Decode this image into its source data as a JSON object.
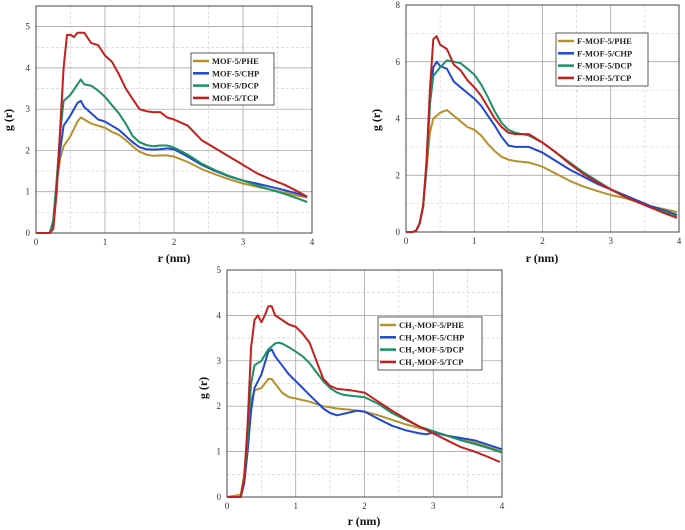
{
  "colors": {
    "PHE": "#b8902a",
    "CHP": "#2048d0",
    "DCP": "#1a9063",
    "TCP": "#c81d1d"
  },
  "chart_data": [
    {
      "type": "line",
      "title": "",
      "xlabel": "r (nm)",
      "ylabel": "g (r)",
      "xlim": [
        0,
        4
      ],
      "ylim": [
        0,
        5.5
      ],
      "xticks": [
        0,
        1,
        2,
        3,
        4
      ],
      "yticks": [
        0,
        1,
        2,
        3,
        4,
        5
      ],
      "grid": true,
      "legend_position": "upper-right",
      "series": [
        {
          "name": "MOF-5/PHE",
          "key": "PHE",
          "x": [
            0,
            0.2,
            0.25,
            0.3,
            0.35,
            0.4,
            0.5,
            0.6,
            0.65,
            0.7,
            0.8,
            0.9,
            1.0,
            1.1,
            1.2,
            1.3,
            1.4,
            1.5,
            1.6,
            1.7,
            1.8,
            1.9,
            2.0,
            2.2,
            2.4,
            2.6,
            2.8,
            3.0,
            3.2,
            3.4,
            3.6,
            3.8,
            3.93
          ],
          "y": [
            0,
            0,
            0.3,
            1.2,
            1.8,
            2.1,
            2.35,
            2.7,
            2.8,
            2.75,
            2.65,
            2.6,
            2.55,
            2.45,
            2.38,
            2.25,
            2.1,
            1.97,
            1.9,
            1.87,
            1.88,
            1.88,
            1.85,
            1.72,
            1.55,
            1.42,
            1.3,
            1.2,
            1.12,
            1.05,
            0.98,
            0.9,
            0.86
          ]
        },
        {
          "name": "MOF-5/CHP",
          "key": "CHP",
          "x": [
            0,
            0.2,
            0.25,
            0.3,
            0.35,
            0.4,
            0.5,
            0.6,
            0.65,
            0.7,
            0.8,
            0.9,
            1.0,
            1.1,
            1.2,
            1.3,
            1.4,
            1.5,
            1.6,
            1.7,
            1.8,
            1.9,
            2.0,
            2.2,
            2.4,
            2.6,
            2.8,
            3.0,
            3.2,
            3.4,
            3.6,
            3.8,
            3.93
          ],
          "y": [
            0,
            0,
            0.3,
            1.2,
            2.0,
            2.6,
            2.85,
            3.15,
            3.2,
            3.05,
            2.9,
            2.75,
            2.7,
            2.6,
            2.5,
            2.35,
            2.2,
            2.08,
            2.03,
            2.02,
            2.03,
            2.05,
            2.03,
            1.85,
            1.65,
            1.5,
            1.37,
            1.27,
            1.2,
            1.12,
            1.04,
            0.95,
            0.88
          ]
        },
        {
          "name": "MOF-5/DCP",
          "key": "DCP",
          "x": [
            0,
            0.2,
            0.25,
            0.3,
            0.35,
            0.4,
            0.5,
            0.6,
            0.65,
            0.7,
            0.8,
            0.9,
            1.0,
            1.1,
            1.2,
            1.3,
            1.4,
            1.5,
            1.6,
            1.7,
            1.8,
            1.9,
            2.0,
            2.2,
            2.4,
            2.6,
            2.8,
            3.0,
            3.2,
            3.4,
            3.6,
            3.8,
            3.93
          ],
          "y": [
            0,
            0,
            0.3,
            1.3,
            2.4,
            3.2,
            3.35,
            3.6,
            3.72,
            3.6,
            3.57,
            3.45,
            3.3,
            3.1,
            2.9,
            2.65,
            2.35,
            2.2,
            2.13,
            2.1,
            2.12,
            2.12,
            2.07,
            1.9,
            1.68,
            1.52,
            1.38,
            1.27,
            1.15,
            1.05,
            0.95,
            0.83,
            0.75
          ]
        },
        {
          "name": "MOF-5/TCP",
          "key": "TCP",
          "x": [
            0,
            0.2,
            0.25,
            0.3,
            0.35,
            0.4,
            0.45,
            0.5,
            0.55,
            0.6,
            0.7,
            0.8,
            0.9,
            1.0,
            1.1,
            1.2,
            1.3,
            1.4,
            1.5,
            1.6,
            1.7,
            1.8,
            1.9,
            2.0,
            2.2,
            2.4,
            2.6,
            2.8,
            3.0,
            3.2,
            3.4,
            3.6,
            3.8,
            3.93
          ],
          "y": [
            0,
            0,
            0.1,
            1.0,
            2.5,
            4.0,
            4.8,
            4.8,
            4.75,
            4.85,
            4.85,
            4.6,
            4.55,
            4.3,
            4.15,
            3.85,
            3.5,
            3.25,
            3.0,
            2.95,
            2.93,
            2.93,
            2.8,
            2.75,
            2.6,
            2.25,
            2.05,
            1.85,
            1.65,
            1.45,
            1.3,
            1.17,
            1.0,
            0.88
          ]
        }
      ]
    },
    {
      "type": "line",
      "title": "",
      "xlabel": "r (nm)",
      "ylabel": "g (r)",
      "xlim": [
        0,
        4
      ],
      "ylim": [
        0,
        8
      ],
      "xticks": [
        0,
        1,
        2,
        3,
        4
      ],
      "yticks": [
        0,
        2,
        4,
        6,
        8
      ],
      "grid": true,
      "legend_position": "upper-right",
      "series": [
        {
          "name": "F-MOF-5/PHE",
          "key": "PHE",
          "x": [
            0,
            0.1,
            0.15,
            0.2,
            0.25,
            0.3,
            0.35,
            0.4,
            0.5,
            0.6,
            0.7,
            0.8,
            0.9,
            1.0,
            1.1,
            1.2,
            1.3,
            1.4,
            1.5,
            1.6,
            1.8,
            2.0,
            2.2,
            2.4,
            2.6,
            2.8,
            3.0,
            3.2,
            3.4,
            3.6,
            3.8,
            3.97
          ],
          "y": [
            0,
            0,
            0.05,
            0.3,
            0.9,
            2.2,
            3.5,
            4.0,
            4.2,
            4.3,
            4.1,
            3.9,
            3.7,
            3.6,
            3.4,
            3.1,
            2.85,
            2.65,
            2.55,
            2.5,
            2.45,
            2.3,
            2.05,
            1.8,
            1.6,
            1.45,
            1.3,
            1.2,
            1.05,
            0.9,
            0.8,
            0.7
          ]
        },
        {
          "name": "F-MOF-5/CHP",
          "key": "CHP",
          "x": [
            0,
            0.1,
            0.15,
            0.2,
            0.25,
            0.3,
            0.35,
            0.4,
            0.45,
            0.5,
            0.6,
            0.7,
            0.8,
            0.9,
            1.0,
            1.1,
            1.2,
            1.3,
            1.4,
            1.5,
            1.6,
            1.8,
            2.0,
            2.2,
            2.4,
            2.6,
            2.8,
            3.0,
            3.2,
            3.4,
            3.6,
            3.8,
            3.97
          ],
          "y": [
            0,
            0,
            0.05,
            0.3,
            0.9,
            2.3,
            4.5,
            5.8,
            6.0,
            5.85,
            5.75,
            5.3,
            5.1,
            4.9,
            4.7,
            4.45,
            4.1,
            3.75,
            3.35,
            3.05,
            3.0,
            3.0,
            2.8,
            2.5,
            2.2,
            1.95,
            1.7,
            1.5,
            1.3,
            1.1,
            0.9,
            0.75,
            0.6
          ]
        },
        {
          "name": "F-MOF-5/DCP",
          "key": "DCP",
          "x": [
            0,
            0.1,
            0.15,
            0.2,
            0.25,
            0.3,
            0.35,
            0.4,
            0.5,
            0.6,
            0.7,
            0.8,
            0.9,
            1.0,
            1.1,
            1.2,
            1.3,
            1.4,
            1.5,
            1.6,
            1.8,
            2.0,
            2.2,
            2.4,
            2.6,
            2.8,
            3.0,
            3.2,
            3.4,
            3.6,
            3.8,
            3.97
          ],
          "y": [
            0,
            0,
            0.05,
            0.3,
            0.9,
            2.3,
            4.5,
            5.5,
            5.8,
            6.05,
            6.0,
            5.95,
            5.75,
            5.55,
            5.2,
            4.75,
            4.25,
            3.85,
            3.6,
            3.5,
            3.4,
            3.15,
            2.8,
            2.45,
            2.1,
            1.8,
            1.5,
            1.25,
            1.05,
            0.85,
            0.7,
            0.55
          ]
        },
        {
          "name": "F-MOF-5/TCP",
          "key": "TCP",
          "x": [
            0,
            0.1,
            0.15,
            0.2,
            0.25,
            0.3,
            0.35,
            0.4,
            0.45,
            0.5,
            0.6,
            0.7,
            0.8,
            0.9,
            1.0,
            1.1,
            1.2,
            1.3,
            1.4,
            1.5,
            1.6,
            1.8,
            2.0,
            2.2,
            2.4,
            2.6,
            2.8,
            3.0,
            3.2,
            3.4,
            3.6,
            3.8,
            3.97
          ],
          "y": [
            0,
            0,
            0.05,
            0.3,
            0.9,
            2.5,
            5.0,
            6.8,
            6.9,
            6.6,
            6.45,
            5.9,
            5.7,
            5.35,
            5.1,
            4.8,
            4.4,
            4.0,
            3.7,
            3.5,
            3.45,
            3.45,
            3.15,
            2.8,
            2.4,
            2.05,
            1.75,
            1.5,
            1.25,
            1.05,
            0.85,
            0.65,
            0.5
          ]
        }
      ]
    },
    {
      "type": "line",
      "title": "",
      "xlabel": "r (nm)",
      "ylabel": "g (r)",
      "xlim": [
        0,
        4
      ],
      "ylim": [
        0,
        5
      ],
      "xticks": [
        0,
        1,
        2,
        3,
        4
      ],
      "yticks": [
        0,
        1,
        2,
        3,
        4,
        5
      ],
      "grid": true,
      "legend_position": "upper-right",
      "series": [
        {
          "name": "CH₃-MOF-5/PHE",
          "key": "PHE",
          "x": [
            0,
            0.2,
            0.25,
            0.3,
            0.35,
            0.4,
            0.5,
            0.6,
            0.65,
            0.7,
            0.8,
            0.9,
            1.0,
            1.2,
            1.4,
            1.6,
            1.8,
            2.0,
            2.2,
            2.4,
            2.6,
            2.8,
            3.0,
            3.2,
            3.4,
            3.6,
            3.8,
            4.0
          ],
          "y": [
            0,
            0.05,
            0.5,
            1.4,
            2.1,
            2.35,
            2.4,
            2.6,
            2.6,
            2.5,
            2.3,
            2.2,
            2.17,
            2.1,
            2.0,
            1.95,
            1.92,
            1.88,
            1.8,
            1.7,
            1.6,
            1.52,
            1.45,
            1.35,
            1.28,
            1.2,
            1.1,
            1.0
          ]
        },
        {
          "name": "CH₃-MOF-5/CHP",
          "key": "CHP",
          "x": [
            0,
            0.2,
            0.25,
            0.3,
            0.35,
            0.4,
            0.5,
            0.6,
            0.65,
            0.7,
            0.8,
            0.9,
            1.0,
            1.1,
            1.2,
            1.3,
            1.4,
            1.5,
            1.6,
            1.8,
            1.9,
            2.0,
            2.2,
            2.4,
            2.6,
            2.8,
            2.9,
            3.0,
            3.2,
            3.4,
            3.6,
            3.8,
            4.0
          ],
          "y": [
            0,
            0,
            0.3,
            1.0,
            1.9,
            2.4,
            2.7,
            3.2,
            3.25,
            3.1,
            2.9,
            2.7,
            2.55,
            2.4,
            2.25,
            2.1,
            1.95,
            1.85,
            1.8,
            1.87,
            1.9,
            1.88,
            1.72,
            1.57,
            1.47,
            1.4,
            1.38,
            1.42,
            1.35,
            1.3,
            1.25,
            1.15,
            1.05
          ]
        },
        {
          "name": "CH₃-MOF-5/DCP",
          "key": "DCP",
          "x": [
            0,
            0.2,
            0.25,
            0.3,
            0.35,
            0.4,
            0.5,
            0.6,
            0.7,
            0.75,
            0.8,
            0.9,
            1.0,
            1.1,
            1.2,
            1.3,
            1.4,
            1.5,
            1.6,
            1.7,
            1.8,
            2.0,
            2.2,
            2.4,
            2.6,
            2.8,
            3.0,
            3.2,
            3.4,
            3.6,
            3.8,
            4.0
          ],
          "y": [
            0,
            0,
            0.4,
            1.3,
            2.5,
            2.9,
            3.0,
            3.25,
            3.38,
            3.4,
            3.38,
            3.3,
            3.2,
            3.1,
            2.95,
            2.75,
            2.55,
            2.4,
            2.3,
            2.25,
            2.23,
            2.2,
            2.05,
            1.85,
            1.7,
            1.55,
            1.45,
            1.35,
            1.25,
            1.17,
            1.08,
            0.98
          ]
        },
        {
          "name": "CH₃-MOF-5/TCP",
          "key": "TCP",
          "x": [
            0,
            0.2,
            0.25,
            0.3,
            0.35,
            0.4,
            0.45,
            0.5,
            0.55,
            0.6,
            0.65,
            0.7,
            0.8,
            0.9,
            1.0,
            1.1,
            1.2,
            1.3,
            1.4,
            1.5,
            1.6,
            1.8,
            2.0,
            2.2,
            2.4,
            2.6,
            2.8,
            3.0,
            3.2,
            3.4,
            3.6,
            3.8,
            3.97
          ],
          "y": [
            0,
            0,
            0.4,
            1.6,
            3.3,
            3.9,
            4.0,
            3.85,
            4.0,
            4.2,
            4.2,
            4.0,
            3.9,
            3.8,
            3.75,
            3.6,
            3.4,
            3.0,
            2.6,
            2.45,
            2.38,
            2.35,
            2.3,
            2.1,
            1.9,
            1.72,
            1.55,
            1.4,
            1.25,
            1.1,
            1.0,
            0.88,
            0.77
          ]
        }
      ]
    }
  ]
}
